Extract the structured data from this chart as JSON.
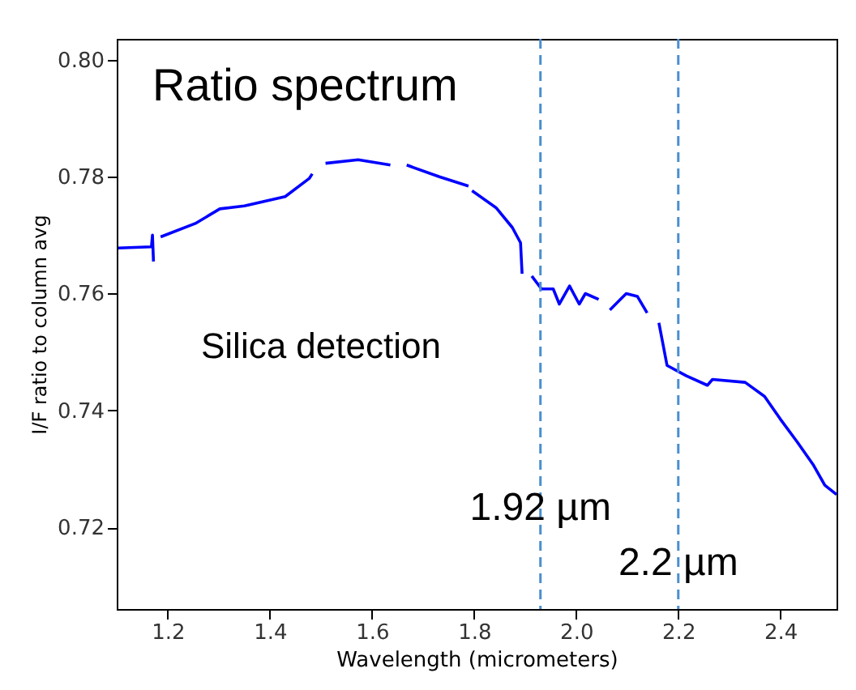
{
  "chart_data": {
    "type": "line",
    "xlabel": "Wavelength (micrometers)",
    "ylabel": "I/F ratio to column avg",
    "x": [
      1.103,
      1.168,
      1.17,
      1.172,
      1.18,
      1.186,
      1.254,
      1.302,
      1.35,
      1.43,
      1.477,
      1.483,
      1.495,
      1.509,
      1.573,
      1.636,
      1.65,
      1.668,
      1.732,
      1.789,
      1.792,
      1.796,
      1.843,
      1.875,
      1.891,
      1.894,
      1.903,
      1.913,
      1.932,
      1.955,
      1.967,
      1.987,
      2.006,
      2.018,
      2.044,
      2.055,
      2.066,
      2.098,
      2.12,
      2.139,
      2.15,
      2.162,
      2.178,
      2.216,
      2.257,
      2.267,
      2.331,
      2.369,
      2.4,
      2.433,
      2.465,
      2.487,
      2.51
    ],
    "series": [
      {
        "color": "#0000ff",
        "values": [
          0.7678,
          0.768,
          0.77,
          0.7655,
          null,
          0.7697,
          0.772,
          0.7745,
          0.775,
          0.7766,
          0.7797,
          0.7805,
          null,
          0.7823,
          0.7829,
          0.782,
          null,
          0.782,
          0.78,
          0.7784,
          null,
          0.7776,
          0.7747,
          0.7713,
          0.7687,
          0.7634,
          null,
          0.763,
          0.7608,
          0.7608,
          0.7582,
          0.7613,
          0.7582,
          0.76,
          0.759,
          null,
          0.7572,
          0.76,
          0.7595,
          0.7567,
          null,
          0.755,
          0.7477,
          0.7459,
          0.7443,
          0.7453,
          0.7448,
          0.7424,
          0.7385,
          0.7346,
          0.7306,
          0.7272,
          0.7256
        ]
      }
    ],
    "xlim": [
      1.1,
      2.51
    ],
    "ylim": [
      0.706,
      0.8036
    ],
    "xticks": [
      {
        "value": 1.2,
        "label": "1.2"
      },
      {
        "value": 1.4,
        "label": "1.4"
      },
      {
        "value": 1.6,
        "label": "1.6"
      },
      {
        "value": 1.8,
        "label": "1.8"
      },
      {
        "value": 2.0,
        "label": "2.0"
      },
      {
        "value": 2.2,
        "label": "2.2"
      },
      {
        "value": 2.4,
        "label": "2.4"
      }
    ],
    "yticks": [
      {
        "value": 0.72,
        "label": "0.72"
      },
      {
        "value": 0.74,
        "label": "0.74"
      },
      {
        "value": 0.76,
        "label": "0.76"
      },
      {
        "value": 0.78,
        "label": "0.78"
      },
      {
        "value": 0.8,
        "label": "0.80"
      }
    ],
    "ref_lines": [
      {
        "axis": "x",
        "value": 1.93,
        "label": "1.92 µm",
        "color": "#4a8fd0",
        "line_style": "dashed"
      },
      {
        "axis": "x",
        "value": 2.2,
        "label": "2.2 µm",
        "color": "#4a8fd0",
        "line_style": "dashed"
      }
    ],
    "annotations": [
      "Ratio spectrum",
      "Silica detection"
    ],
    "grid": false,
    "line_style": "solid",
    "marker": "none"
  }
}
